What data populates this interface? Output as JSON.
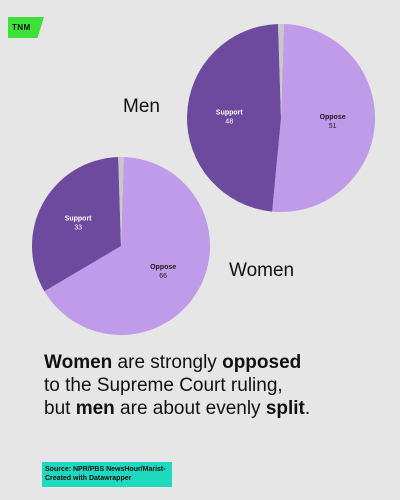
{
  "brand": {
    "logo_text": "TNM"
  },
  "colors": {
    "support": "#6e4a9e",
    "oppose": "#c09bea",
    "other": "#c8c8c8",
    "background": "#e6e6e6",
    "logo": "#3ee03a",
    "source_bg": "#1ed9c0"
  },
  "chart_data": [
    {
      "type": "pie",
      "title": "Men",
      "slices": [
        {
          "label": "Support",
          "value": 48
        },
        {
          "label": "Oppose",
          "value": 51
        },
        {
          "label": "",
          "value": 1
        }
      ]
    },
    {
      "type": "pie",
      "title": "Women",
      "slices": [
        {
          "label": "Support",
          "value": 33
        },
        {
          "label": "Oppose",
          "value": 66
        },
        {
          "label": "",
          "value": 1
        }
      ]
    }
  ],
  "headline": {
    "l1_b1": "Women",
    "l1_t1": " are strongly ",
    "l1_b2": "opposed",
    "l2": "to the Supreme Court ruling,",
    "l3_t1": "but ",
    "l3_b1": "men",
    "l3_t2": " are about evenly ",
    "l3_b2": "split",
    "l3_t3": "."
  },
  "source": {
    "line1": "Source: NPR/PBS NewsHour/Marist-",
    "line2": "Created with Datawrapper"
  }
}
